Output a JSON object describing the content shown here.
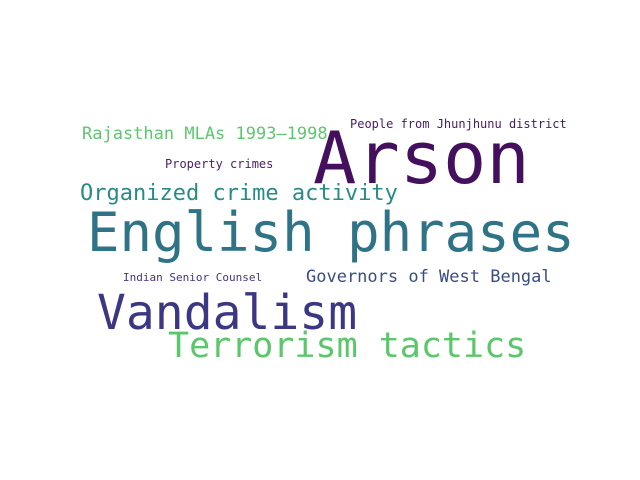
{
  "words": [
    {
      "text": "Arson",
      "color": "#440f5c"
    },
    {
      "text": "English phrases",
      "color": "#2f7386"
    },
    {
      "text": "Vandalism",
      "color": "#3b3783"
    },
    {
      "text": "Terrorism tactics",
      "color": "#5ac86a"
    },
    {
      "text": "Organized crime activity",
      "color": "#278b86"
    },
    {
      "text": "Rajasthan MLAs 1993–1998",
      "color": "#5cc86e"
    },
    {
      "text": "People from Jhunjhunu district",
      "color": "#481a67"
    },
    {
      "text": "Property crimes",
      "color": "#4a1e6b"
    },
    {
      "text": "Governors of West Bengal",
      "color": "#3a4c86"
    },
    {
      "text": "Indian Senior Counsel",
      "color": "#463480"
    }
  ]
}
